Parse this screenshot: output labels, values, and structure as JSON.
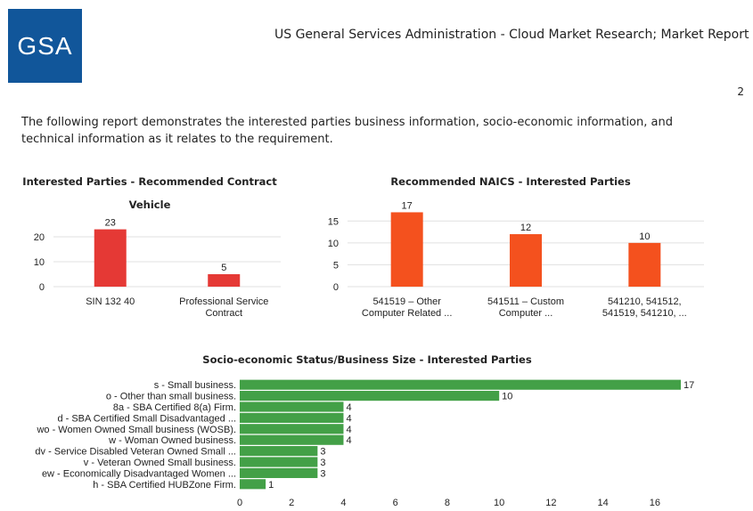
{
  "header": {
    "logo_text": "GSA",
    "title": "US General Services Administration - Cloud Market Research; Market Report",
    "page_number": "2"
  },
  "intro": "The following report demonstrates the interested parties business information, socio-economic information, and technical information as it relates to the requirement.",
  "colors": {
    "logo_bg": "#11569a",
    "red": "#e53935",
    "orange": "#f4511e",
    "green": "#43a047",
    "grid": "#e0e0e0"
  },
  "chart_data": [
    {
      "type": "bar",
      "title_lines": [
        "Interested Parties - Recommended Contract",
        "Vehicle"
      ],
      "categories": [
        [
          "SIN 132 40"
        ],
        [
          "Professional Service",
          "Contract"
        ]
      ],
      "values": [
        23,
        5
      ],
      "yticks": [
        0,
        10,
        20
      ],
      "ylim": [
        0,
        25
      ],
      "color": "#e53935"
    },
    {
      "type": "bar",
      "title_lines": [
        "Recommended NAICS - Interested Parties"
      ],
      "categories": [
        [
          "541519 – Other",
          "Computer Related ..."
        ],
        [
          "541511 – Custom",
          "Computer ..."
        ],
        [
          "541210, 541512,",
          "541519, 541210, ..."
        ]
      ],
      "values": [
        17,
        12,
        10
      ],
      "yticks": [
        0,
        5,
        10,
        15
      ],
      "ylim": [
        0,
        17.5
      ],
      "color": "#f4511e"
    },
    {
      "type": "bar",
      "orientation": "horizontal",
      "title_lines": [
        "Socio-economic Status/Business Size - Interested Parties"
      ],
      "categories": [
        "s - Small business.",
        "o - Other than small business.",
        "8a - SBA Certified 8(a) Firm.",
        "d - SBA Certified Small Disadvantaged ...",
        "wo - Women Owned Small business (WOSB).",
        "w - Woman Owned business.",
        "dv - Service Disabled Veteran Owned Small ...",
        "v - Veteran Owned Small business.",
        "ew - Economically Disadvantaged Women ...",
        "h - SBA Certified HUBZone Firm."
      ],
      "values": [
        17,
        10,
        4,
        4,
        4,
        4,
        3,
        3,
        3,
        1
      ],
      "xticks": [
        0,
        2,
        4,
        6,
        8,
        10,
        12,
        14,
        16
      ],
      "xlim": [
        0,
        17
      ],
      "color": "#43a047"
    }
  ]
}
